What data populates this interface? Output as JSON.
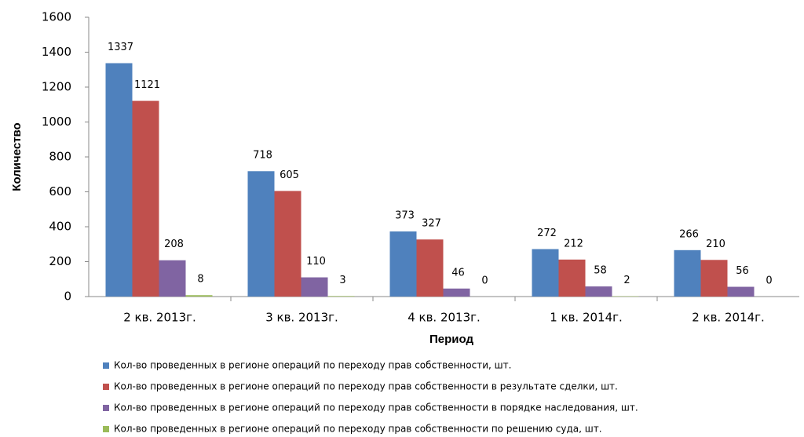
{
  "chart_data": {
    "type": "bar",
    "categories": [
      "2 кв. 2013г.",
      "3 кв. 2013г.",
      "4 кв. 2013г.",
      "1 кв. 2014г.",
      "2 кв. 2014г."
    ],
    "series": [
      {
        "name": "Кол-во проведенных в регионе операций по переходу прав собственности, шт.",
        "color": "#4f81bd",
        "values": [
          1337,
          718,
          373,
          272,
          266
        ]
      },
      {
        "name": "Кол-во проведенных в регионе операций по переходу прав собственности в результате сделки, шт.",
        "color": "#c0504d",
        "values": [
          1121,
          605,
          327,
          212,
          210
        ]
      },
      {
        "name": "Кол-во проведенных в регионе операций по переходу прав собственности в порядке наследования, шт.",
        "color": "#8064a2",
        "values": [
          208,
          110,
          46,
          58,
          56
        ]
      },
      {
        "name": "Кол-во проведенных в регионе операций по переходу прав собственности по решению суда, шт.",
        "color": "#9bbb59",
        "values": [
          8,
          3,
          0,
          2,
          0
        ]
      }
    ],
    "xlabel": "Период",
    "ylabel": "Количество",
    "ylim": [
      0,
      1600
    ],
    "yticks": [
      0,
      200,
      400,
      600,
      800,
      1000,
      1200,
      1400,
      1600
    ],
    "grid": false,
    "legend": "bottom"
  }
}
